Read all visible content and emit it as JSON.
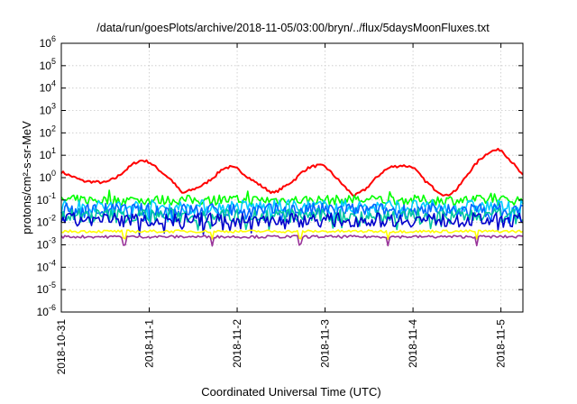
{
  "chart_data": {
    "type": "line",
    "title": "/data/run/goesPlots/archive/2018-11-05/03:00/bryn/../flux/5daysMoonFluxes.txt",
    "xlabel": "Coordinated Universal Time (UTC)",
    "ylabel": "protons/cm²-s-sr-MeV",
    "yscale": "log",
    "ylim": [
      1e-06,
      1000000.0
    ],
    "ytick_exponents": [
      -6,
      -5,
      -4,
      -3,
      -2,
      -1,
      0,
      1,
      2,
      3,
      4,
      5,
      6
    ],
    "xlim": [
      "2018-10-31 00:00",
      "2018-11-05 06:00"
    ],
    "xticks": [
      "2018-10-31",
      "2018-11-1",
      "2018-11-2",
      "2018-11-3",
      "2018-11-4",
      "2018-11-5"
    ],
    "grid": true,
    "legend": "none",
    "series": [
      {
        "color": "#ff0000",
        "base": 0.6,
        "x": [
          "2018-10-31 00:00",
          "2018-10-31 06:00",
          "2018-10-31 12:00",
          "2018-10-31 15:00",
          "2018-10-31 18:00",
          "2018-10-31 20:00",
          "2018-10-31 22:00",
          "2018-11-01 00:00",
          "2018-11-01 03:00",
          "2018-11-01 06:00",
          "2018-11-01 09:00",
          "2018-11-01 12:00",
          "2018-11-01 15:00",
          "2018-11-01 18:00",
          "2018-11-01 20:00",
          "2018-11-01 22:00",
          "2018-11-02 00:00",
          "2018-11-02 04:00",
          "2018-11-02 08:00",
          "2018-11-02 10:00",
          "2018-11-02 13:00",
          "2018-11-02 16:00",
          "2018-11-02 18:00",
          "2018-11-02 20:00",
          "2018-11-02 22:00",
          "2018-11-03 00:00",
          "2018-11-03 03:00",
          "2018-11-03 06:00",
          "2018-11-03 08:00",
          "2018-11-03 11:00",
          "2018-11-03 14:00",
          "2018-11-03 16:00",
          "2018-11-03 18:00",
          "2018-11-03 21:00",
          "2018-11-04 00:00",
          "2018-11-04 03:00",
          "2018-11-04 06:00",
          "2018-11-04 09:00",
          "2018-11-04 12:00",
          "2018-11-04 15:00",
          "2018-11-04 18:00",
          "2018-11-04 21:00",
          "2018-11-05 00:00",
          "2018-11-05 03:00",
          "2018-11-05 06:00"
        ],
        "values": [
          1.8,
          0.7,
          0.6,
          1.0,
          2.5,
          4.5,
          6.0,
          5.0,
          2.0,
          0.8,
          0.2,
          0.3,
          0.5,
          1.2,
          2.5,
          3.0,
          2.5,
          0.8,
          0.3,
          0.2,
          0.4,
          0.9,
          2.0,
          3.0,
          3.5,
          3.2,
          1.0,
          0.3,
          0.15,
          0.3,
          1.0,
          2.0,
          3.0,
          3.5,
          3.0,
          0.8,
          0.3,
          0.15,
          0.3,
          1.5,
          6.0,
          15.0,
          18.0,
          5.0,
          1.2
        ]
      },
      {
        "color": "#00ff00",
        "base": 0.1,
        "x": [
          "2018-10-31 00:00",
          "2018-11-05 06:00"
        ],
        "values": [
          0.1,
          0.1
        ]
      },
      {
        "color": "#00ccff",
        "base": 0.05,
        "x": [
          "2018-10-31 00:00",
          "2018-11-05 06:00"
        ],
        "values": [
          0.05,
          0.05
        ]
      },
      {
        "color": "#0066ff",
        "base": 0.035,
        "x": [
          "2018-10-31 00:00",
          "2018-11-05 06:00"
        ],
        "values": [
          0.035,
          0.035
        ]
      },
      {
        "color": "#00c8a0",
        "base": 0.02,
        "x": [
          "2018-10-31 00:00",
          "2018-11-05 06:00"
        ],
        "values": [
          0.02,
          0.02
        ]
      },
      {
        "color": "#0000cc",
        "base": 0.013,
        "x": [
          "2018-10-31 00:00",
          "2018-11-05 06:00"
        ],
        "values": [
          0.013,
          0.013
        ]
      },
      {
        "color": "#ffff00",
        "base": 0.004,
        "x": [
          "2018-10-31 00:00",
          "2018-11-05 06:00"
        ],
        "values": [
          0.004,
          0.004
        ]
      },
      {
        "color": "#993399",
        "base": 0.0023,
        "x": [
          "2018-10-31 00:00",
          "2018-11-05 06:00"
        ],
        "values": [
          0.0023,
          0.0023
        ]
      }
    ]
  }
}
